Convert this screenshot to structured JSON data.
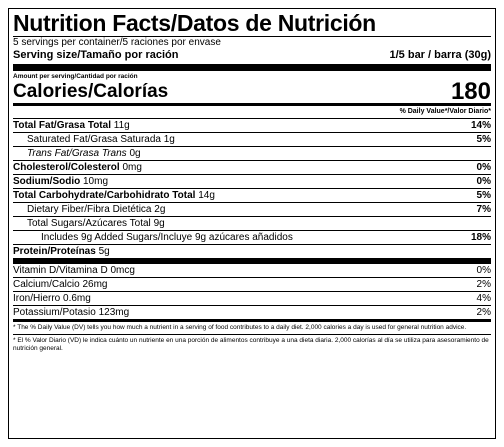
{
  "title": "Nutrition Facts/Datos de Nutrición",
  "servings_per_container": "5 servings per container/5 raciones por envase",
  "serving_size_label": "Serving size/Tamaño por ración",
  "serving_size_value": "1/5 bar / barra (30g)",
  "amount_per_serving": "Amount per serving/Cantidad por ración",
  "calories_label": "Calories/Calorías",
  "calories_value": "180",
  "dv_header": "% Daily Value*/Valor Diario*",
  "nutrients": [
    {
      "label": "Total Fat/Grasa Total",
      "amount": "11g",
      "dv": "14%"
    },
    {
      "label": "Saturated Fat/Grasa Saturada",
      "amount": "1g",
      "dv": "5%"
    },
    {
      "label": "Trans Fat/Grasa Trans",
      "amount": "0g",
      "dv": ""
    },
    {
      "label": "Cholesterol/Colesterol",
      "amount": "0mg",
      "dv": "0%"
    },
    {
      "label": "Sodium/Sodio",
      "amount": "10mg",
      "dv": "0%"
    },
    {
      "label": "Total Carbohydrate/Carbohidrato Total",
      "amount": "14g",
      "dv": "5%"
    },
    {
      "label": "Dietary Fiber/Fibra Dietética",
      "amount": "2g",
      "dv": "7%"
    },
    {
      "label": "Total Sugars/Azúcares Total",
      "amount": "9g",
      "dv": ""
    },
    {
      "label": "Includes 9g Added Sugars/Incluye 9g azúcares añadidos",
      "amount": "",
      "dv": "18%"
    },
    {
      "label": "Protein/Proteínas",
      "amount": "5g",
      "dv": ""
    }
  ],
  "vitamins": [
    {
      "label": "Vitamin D/Vitamina D",
      "amount": "0mcg",
      "dv": "0%"
    },
    {
      "label": "Calcium/Calcio",
      "amount": "26mg",
      "dv": "2%"
    },
    {
      "label": "Iron/Hierro",
      "amount": "0.6mg",
      "dv": "4%"
    },
    {
      "label": "Potassium/Potasio",
      "amount": "123mg",
      "dv": "2%"
    }
  ],
  "footnote_en": "* The % Daily Value (DV) tells you how much a nutrient in a serving of food contributes to a daily diet. 2,000 calories a day is used for general nutrition advice.",
  "footnote_es": "* El % Valor Diario (VD) le indica cuánto un nutriente en una porción de alimentos contribuye a una dieta diaria. 2,000 calorías al día se utiliza para asesoramiento de nutrición general."
}
